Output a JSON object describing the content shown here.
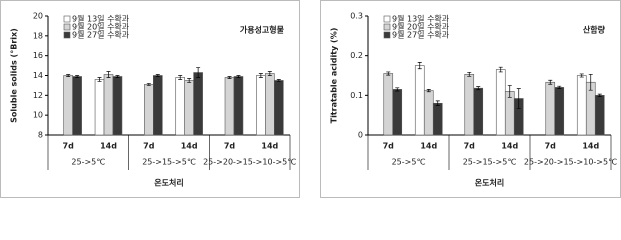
{
  "chart_data": [
    {
      "type": "bar",
      "annotation": "가용성고형물",
      "y_label": "Soluble solids (°Brix)",
      "x_label": "온도처리",
      "categories": [
        "7d",
        "14d",
        "7d",
        "14d",
        "7d",
        "14d"
      ],
      "groups": [
        "25->5℃",
        "25->15->5℃",
        "25->20->15->10->5℃"
      ],
      "ylim": [
        8,
        20
      ],
      "yticks": [
        8,
        10,
        12,
        14,
        16,
        18,
        20
      ],
      "series": [
        {
          "name": "9월 13일 수확과",
          "color": "#ffffff",
          "values": [
            null,
            13.6,
            null,
            13.8,
            null,
            14.0
          ],
          "errors": [
            null,
            0.2,
            null,
            0.2,
            null,
            0.2
          ]
        },
        {
          "name": "9월 20일 수확과",
          "color": "#d4d4d4",
          "values": [
            14.0,
            14.1,
            13.1,
            13.5,
            13.8,
            14.2
          ],
          "errors": [
            0.1,
            0.3,
            0.1,
            0.2,
            0.1,
            0.2
          ]
        },
        {
          "name": "9월 27일 수확과",
          "color": "#3a3a3a",
          "values": [
            13.9,
            13.9,
            14.0,
            14.3,
            13.9,
            13.5
          ],
          "errors": [
            0.1,
            0.1,
            0.1,
            0.5,
            0.1,
            0.1
          ]
        }
      ]
    },
    {
      "type": "bar",
      "annotation": "산함량",
      "y_label": "Titratable acidity (%)",
      "x_label": "온도처리",
      "categories": [
        "7d",
        "14d",
        "7d",
        "14d",
        "7d",
        "14d"
      ],
      "groups": [
        "25->5℃",
        "25->15->5℃",
        "25->20->15->10->5℃"
      ],
      "ylim": [
        0,
        0.3
      ],
      "yticks": [
        0,
        0.1,
        0.2,
        0.3
      ],
      "series": [
        {
          "name": "9월 13일 수확과",
          "color": "#ffffff",
          "values": [
            null,
            0.175,
            null,
            0.165,
            null,
            0.15
          ],
          "errors": [
            null,
            0.008,
            null,
            0.006,
            null,
            0.004
          ]
        },
        {
          "name": "9월 20일 수확과",
          "color": "#d4d4d4",
          "values": [
            0.155,
            0.112,
            0.153,
            0.11,
            0.133,
            0.133
          ],
          "errors": [
            0.004,
            0.003,
            0.005,
            0.015,
            0.005,
            0.02
          ]
        },
        {
          "name": "9월 27일 수확과",
          "color": "#3a3a3a",
          "values": [
            0.115,
            0.08,
            0.118,
            0.092,
            0.12,
            0.1
          ],
          "errors": [
            0.004,
            0.006,
            0.004,
            0.025,
            0.003,
            0.003
          ]
        }
      ]
    }
  ]
}
